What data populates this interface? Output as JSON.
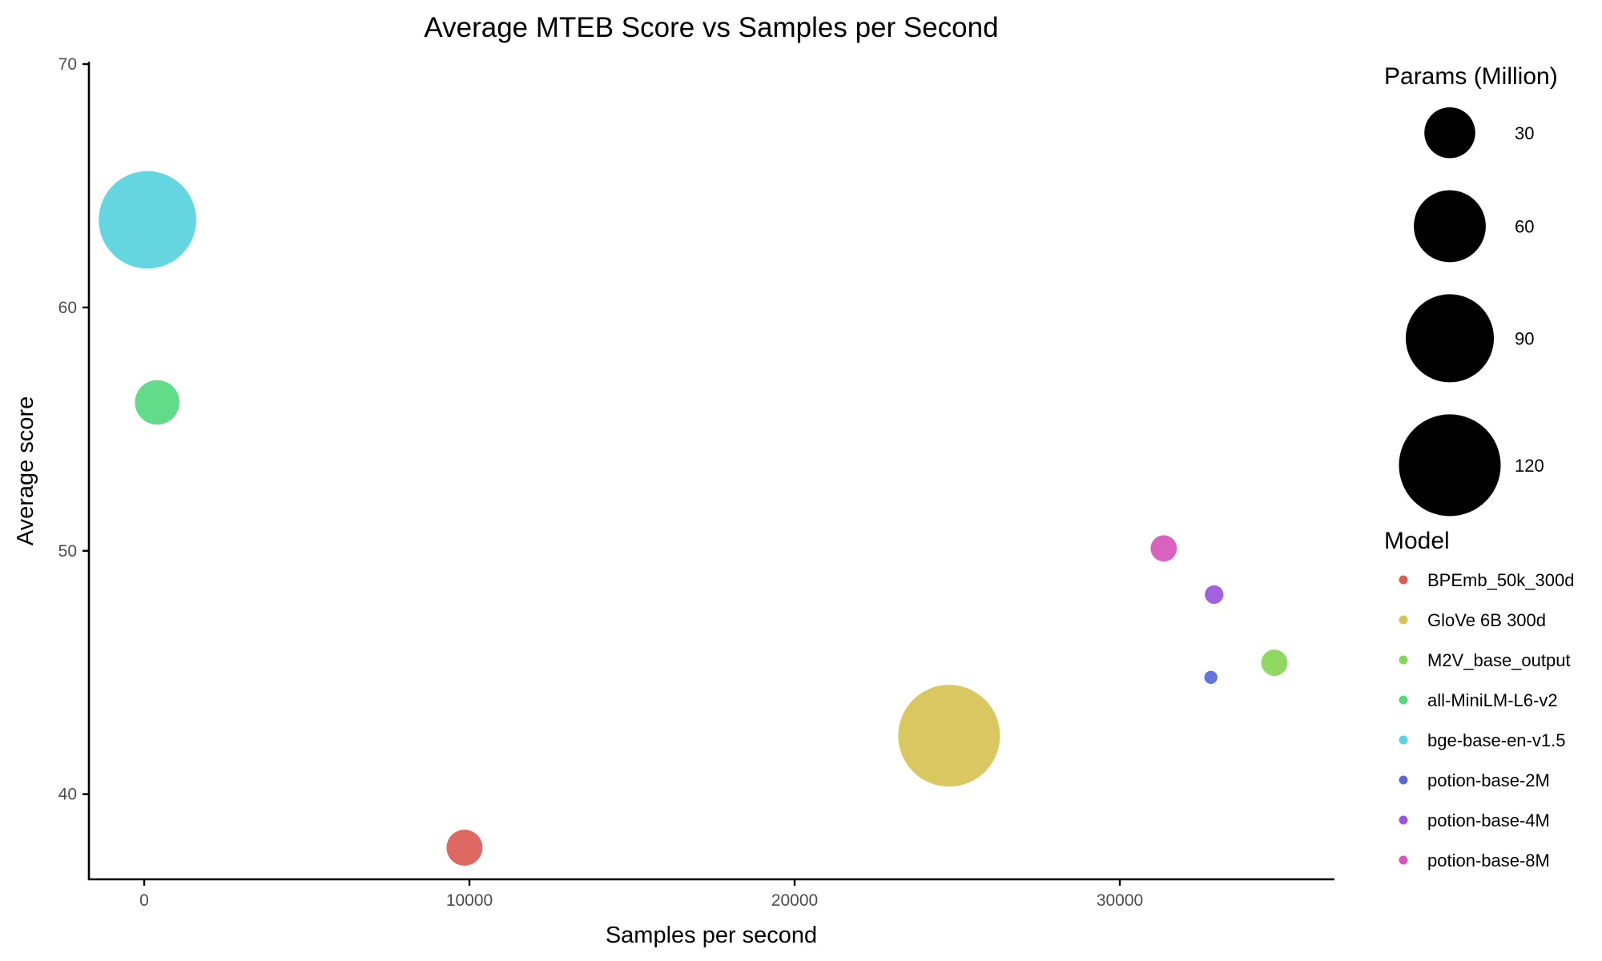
{
  "chart_data": {
    "type": "scatter",
    "title": "Average MTEB Score vs Samples per Second",
    "xlabel": "Samples per second",
    "ylabel": "Average score",
    "xlim": [
      -1700,
      36600
    ],
    "ylim": [
      36.5,
      70.1
    ],
    "x_ticks": [
      0,
      10000,
      20000,
      30000
    ],
    "y_ticks": [
      40,
      50,
      60,
      70
    ],
    "grid": false,
    "size_legend": {
      "title": "Params (Million)",
      "values": [
        30,
        60,
        90,
        120
      ],
      "labels": [
        "30",
        "60",
        "90",
        "120"
      ]
    },
    "color_legend": {
      "title": "Model",
      "placement": "right"
    },
    "series": [
      {
        "name": "BPEmb_50k_300d",
        "color": "#db5b55",
        "x": 9850,
        "y": 37.8,
        "params": 15
      },
      {
        "name": "GloVe 6B 300d",
        "color": "#d8c255",
        "x": 24750,
        "y": 42.4,
        "params": 120
      },
      {
        "name": "M2V_base_output",
        "color": "#86d656",
        "x": 34750,
        "y": 45.4,
        "params": 8
      },
      {
        "name": "all-MiniLM-L6-v2",
        "color": "#55d97f",
        "x": 400,
        "y": 56.1,
        "params": 23
      },
      {
        "name": "bge-base-en-v1.5",
        "color": "#58d3dc",
        "x": 100,
        "y": 63.6,
        "params": 110
      },
      {
        "name": "potion-base-2M",
        "color": "#5869d6",
        "x": 32800,
        "y": 44.8,
        "params": 2
      },
      {
        "name": "potion-base-4M",
        "color": "#9a55da",
        "x": 32900,
        "y": 48.2,
        "params": 4
      },
      {
        "name": "potion-base-8M",
        "color": "#d655b8",
        "x": 31350,
        "y": 50.1,
        "params": 8
      }
    ]
  }
}
